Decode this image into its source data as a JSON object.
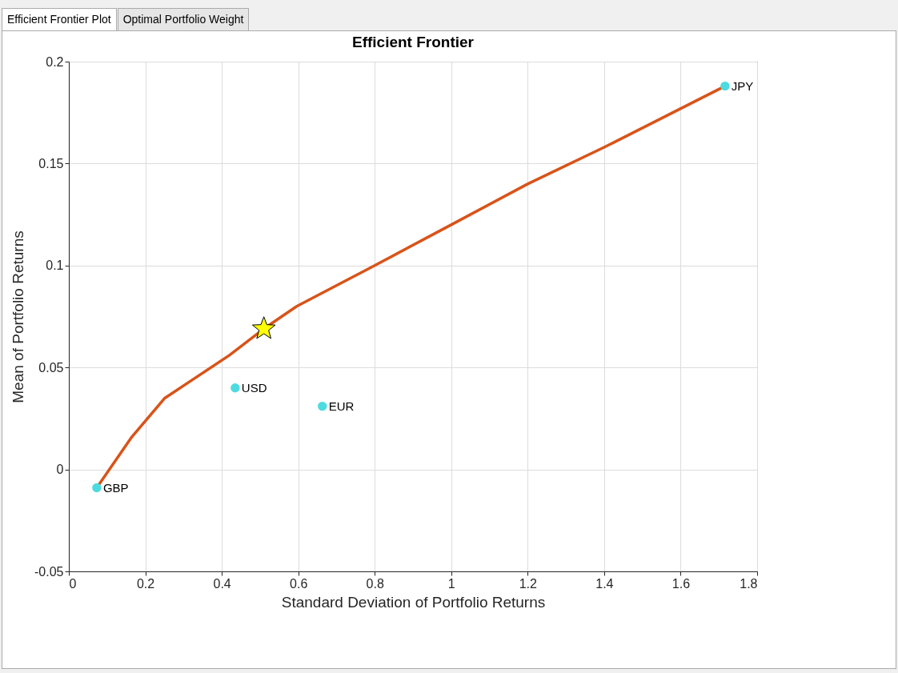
{
  "chart_data": {
    "type": "line",
    "title": "Efficient Frontier",
    "xlabel": "Standard Deviation of Portfolio Returns",
    "ylabel": "Mean of Portfolio Returns",
    "annotations": [
      "Efficient Frontier Plot",
      "Optimal Portfolio Weight"
    ],
    "xlim": [
      0,
      1.8
    ],
    "xticks": [
      0,
      0.2,
      0.4,
      0.6,
      0.8,
      1,
      1.2,
      1.4,
      1.6,
      1.8
    ],
    "ylim": [
      -0.05,
      0.2
    ],
    "yticks": [
      -0.05,
      0,
      0.05,
      0.1,
      0.15,
      0.2
    ],
    "grid": true,
    "series": [
      {
        "color": "#d95319",
        "marker": "none",
        "x": [
          0.073,
          0.165,
          0.251,
          0.42,
          0.51,
          0.596,
          0.8,
          1.0,
          1.2,
          1.4,
          1.716
        ],
        "values": [
          -0.009,
          0.016,
          0.035,
          0.056,
          0.069,
          0.08,
          0.1,
          0.12,
          0.14,
          0.158,
          0.188
        ]
      },
      {
        "type": "scatter",
        "color": "#4ddbe0",
        "marker": "circle",
        "x": [
          0.073,
          0.435,
          0.663,
          1.716
        ],
        "values": [
          -0.009,
          0.04,
          0.031,
          0.188
        ],
        "value_labels": [
          "GBP",
          "USD",
          "EUR",
          "JPY"
        ]
      },
      {
        "type": "scatter",
        "color": "#ffff00",
        "marker": "star",
        "x": [
          0.51
        ],
        "values": [
          0.069
        ]
      }
    ]
  }
}
